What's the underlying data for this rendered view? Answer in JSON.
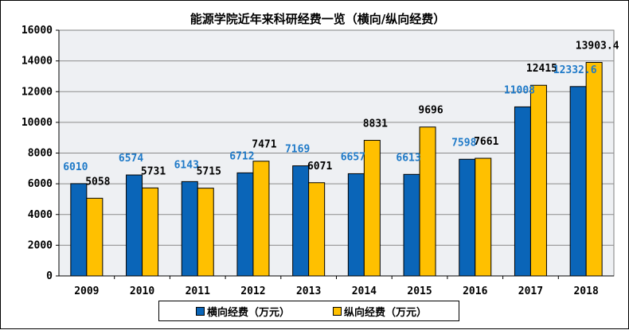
{
  "chart_data": {
    "type": "bar",
    "title": "能源学院近年来科研经费一览（横向/纵向经费）",
    "categories": [
      "2009",
      "2010",
      "2011",
      "2012",
      "2013",
      "2014",
      "2015",
      "2016",
      "2017",
      "2018"
    ],
    "series": [
      {
        "name": "横向经费（万元）",
        "color": "#0a65b8",
        "label_color": "#1f7ac8",
        "values": [
          6010,
          6574,
          6143,
          6712,
          7169,
          6657,
          6613,
          7598,
          11008,
          12332.6
        ],
        "labels": [
          "6010",
          "6574",
          "6143",
          "6712",
          "7169",
          "6657",
          "6613",
          "7598",
          "11008",
          "12332.6"
        ]
      },
      {
        "name": "纵向经费（万元）",
        "color": "#ffc000",
        "label_color": "#000000",
        "values": [
          5058,
          5731,
          5715,
          7471,
          6071,
          8831,
          9696,
          7661,
          12415,
          13903.4
        ],
        "labels": [
          "5058",
          "5731",
          "5715",
          "7471",
          "6071",
          "8831",
          "9696",
          "7661",
          "12415",
          "13903.4"
        ]
      }
    ],
    "ylim": [
      0,
      16000
    ],
    "yticks": [
      "0",
      "2000",
      "4000",
      "6000",
      "8000",
      "10000",
      "12000",
      "14000",
      "16000"
    ],
    "grid": true,
    "legend_position": "bottom",
    "plot_background": "#eef0f3"
  }
}
